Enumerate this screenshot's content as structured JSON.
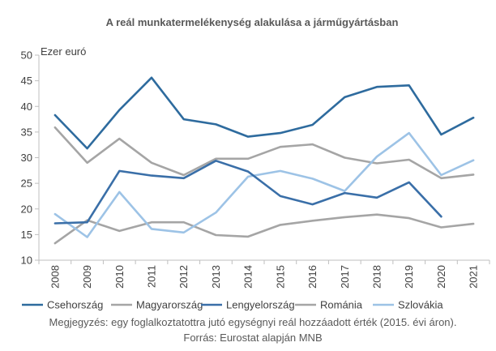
{
  "chart_data": {
    "type": "line",
    "title": "A reál munkatermelékenység alakulása a járműgyártásban",
    "unit_label": "Ezer euró",
    "x": [
      "2008",
      "2009",
      "2010",
      "2011",
      "2012",
      "2013",
      "2014",
      "2015",
      "2016",
      "2017",
      "2018",
      "2019",
      "2020",
      "2021"
    ],
    "ylim": [
      10,
      50
    ],
    "yticks": [
      10,
      15,
      20,
      25,
      30,
      35,
      40,
      45,
      50
    ],
    "grid": false,
    "legend_position": "bottom",
    "series": [
      {
        "name": "Csehország",
        "color": "#2e6b9e",
        "values": [
          38.3,
          31.8,
          39.3,
          45.6,
          37.5,
          36.5,
          34.1,
          34.8,
          36.4,
          41.8,
          43.8,
          44.1,
          34.5,
          37.8
        ]
      },
      {
        "name": "Magyarország",
        "color": "#a5a5a5",
        "values": [
          13.3,
          17.8,
          15.7,
          17.4,
          17.4,
          14.9,
          14.6,
          16.9,
          17.7,
          18.4,
          18.9,
          18.2,
          16.4,
          17.1
        ]
      },
      {
        "name": "Lengyelország",
        "color": "#3a6fa8",
        "values": [
          17.2,
          17.4,
          27.4,
          26.5,
          26.0,
          29.4,
          27.3,
          22.5,
          20.9,
          23.1,
          22.2,
          25.2,
          18.5,
          null
        ]
      },
      {
        "name": "Románia",
        "color": "#a5a5a5",
        "values": [
          35.9,
          29.0,
          33.7,
          29.0,
          26.6,
          29.8,
          29.8,
          32.1,
          32.6,
          30.0,
          28.9,
          29.6,
          26.0,
          26.7
        ]
      },
      {
        "name": "Szlovákia",
        "color": "#9dc3e6",
        "values": [
          19.0,
          14.5,
          23.3,
          16.1,
          15.4,
          19.3,
          26.3,
          27.4,
          25.9,
          23.5,
          30.2,
          34.8,
          26.6,
          29.5
        ]
      }
    ]
  },
  "footnote": "Megjegyzés: egy foglalkoztatottra jutó egységnyi reál hozzáadott érték (2015. évi áron).",
  "source": "Forrás: Eurostat alapján MNB"
}
